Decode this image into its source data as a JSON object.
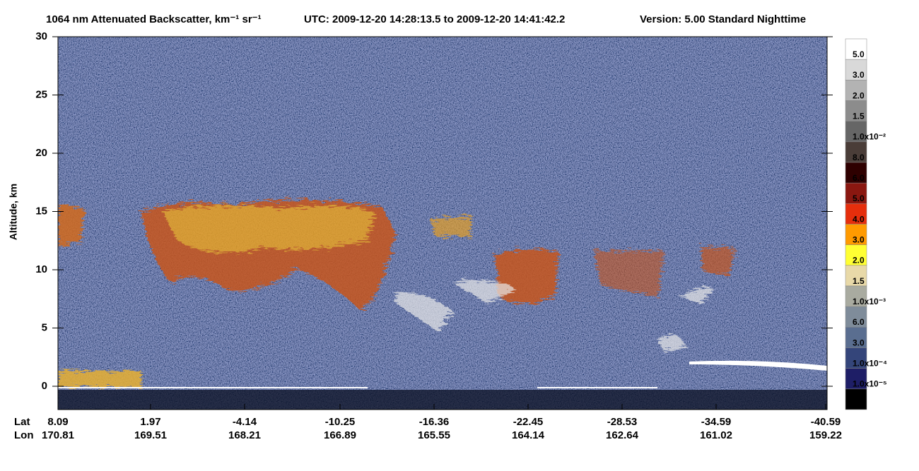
{
  "chart_data": {
    "type": "heatmap",
    "title": "1064 nm Attenuated Backscatter, km⁻¹ sr⁻¹",
    "time_range": "UTC:  2009-12-20 14:28:13.5  to  2009-12-20 14:41:42.2",
    "version": "Version: 5.00  Standard  Nighttime",
    "y_label": "Altitude, km",
    "ylim": [
      -2,
      30
    ],
    "yticks": [
      0,
      5,
      10,
      15,
      20,
      25,
      30
    ],
    "lat_label": "Lat",
    "lon_label": "Lon",
    "lat": [
      8.09,
      1.97,
      -4.14,
      -10.25,
      -16.36,
      -22.45,
      -28.53,
      -34.59,
      -40.59
    ],
    "lon": [
      170.81,
      169.51,
      168.21,
      166.89,
      165.55,
      164.14,
      162.64,
      161.02,
      159.22
    ],
    "colorbar": {
      "colors": [
        "#ffffff",
        "#d9d9d9",
        "#b3b3b3",
        "#8c8c8c",
        "#666666",
        "#4a3d38",
        "#2e0000",
        "#8a1710",
        "#e62e0c",
        "#ff9a00",
        "#ffff33",
        "#e8d9a8",
        "#a9aba0",
        "#7f8c9a",
        "#5a6e90",
        "#34457a",
        "#1e1e66",
        "#000000"
      ],
      "labels": [
        "5.0",
        "3.0",
        "2.0",
        "1.5",
        "1.0x10⁻²",
        "8.0",
        "6.0",
        "5.0",
        "4.0",
        "3.0",
        "2.0",
        "1.5",
        "1.0x10⁻³",
        "6.0",
        "3.0",
        "1.0x10⁻⁴",
        "1.0x10⁻⁵"
      ]
    }
  }
}
